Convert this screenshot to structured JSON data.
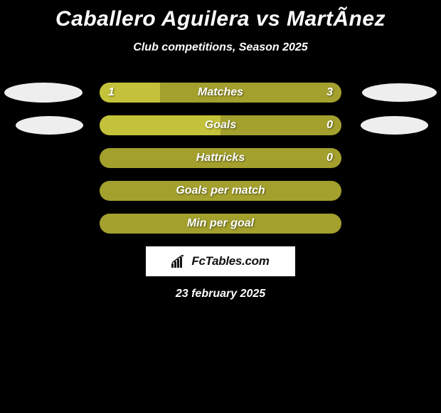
{
  "title": "Caballero Aguilera vs MartÃ­nez",
  "subtitle": "Club competitions, Season 2025",
  "date": "23 february 2025",
  "logo_text": "FcTables.com",
  "colors": {
    "background": "#000000",
    "bar_track": "#a3a02e",
    "bar_fill": "#c4c23a",
    "text": "#ffffff",
    "oval": "#eeeeee",
    "logo_bg": "#ffffff",
    "logo_text": "#111111"
  },
  "rows": [
    {
      "label": "Matches",
      "left_value": "1",
      "right_value": "3",
      "left_pct": 25,
      "show_left_oval": true,
      "show_right_oval": true,
      "left_oval_class": "",
      "right_oval_class": ""
    },
    {
      "label": "Goals",
      "left_value": "",
      "right_value": "0",
      "left_pct": 50,
      "show_left_oval": true,
      "show_right_oval": true,
      "left_oval_class": "smaller",
      "right_oval_class": "smaller"
    },
    {
      "label": "Hattricks",
      "left_value": "",
      "right_value": "0",
      "left_pct": 0,
      "show_left_oval": false,
      "show_right_oval": false,
      "left_oval_class": "",
      "right_oval_class": ""
    },
    {
      "label": "Goals per match",
      "left_value": "",
      "right_value": "",
      "left_pct": 0,
      "show_left_oval": false,
      "show_right_oval": false,
      "left_oval_class": "",
      "right_oval_class": ""
    },
    {
      "label": "Min per goal",
      "left_value": "",
      "right_value": "",
      "left_pct": 0,
      "show_left_oval": false,
      "show_right_oval": false,
      "left_oval_class": "",
      "right_oval_class": ""
    }
  ]
}
